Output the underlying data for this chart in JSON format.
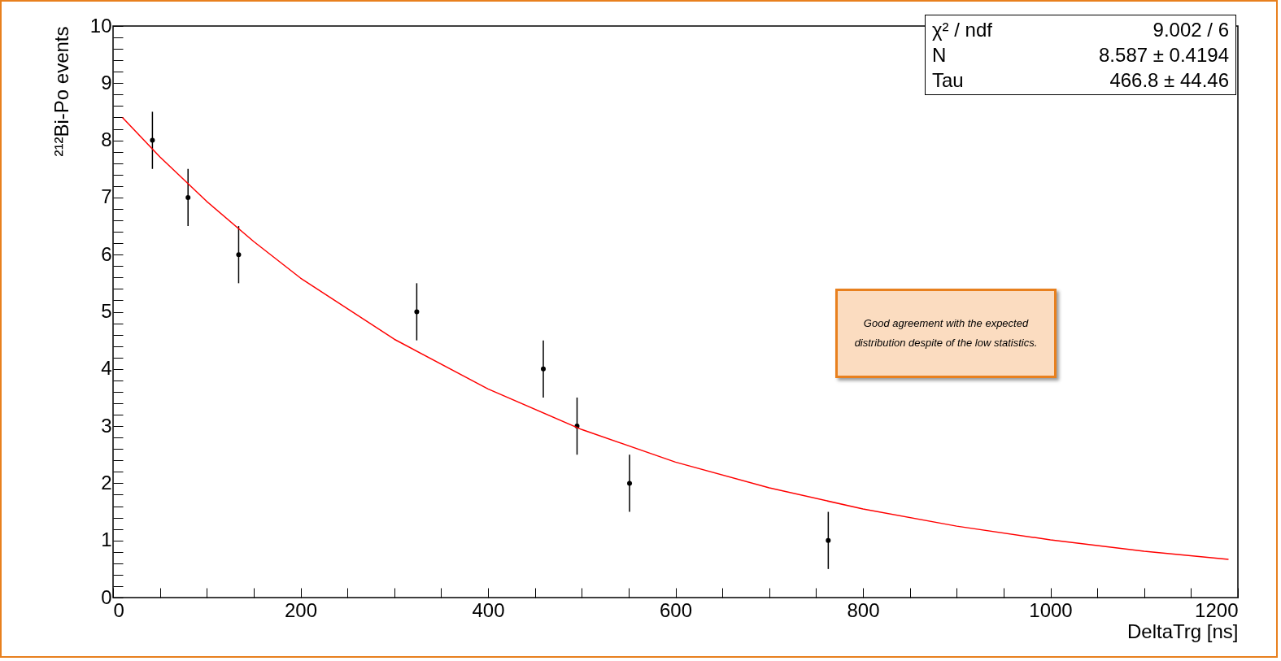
{
  "chart_data": {
    "type": "scatter",
    "xlabel": "DeltaTrg [ns]",
    "ylabel": "²¹²Bi-Po events",
    "xlim": [
      0,
      1200
    ],
    "ylim": [
      0,
      10
    ],
    "xticks": [
      0,
      {
        "value": 50,
        "label": null
      },
      {
        "value": 100,
        "label": null
      },
      {
        "value": 150,
        "label": null
      },
      200,
      {
        "value": 250,
        "label": null
      },
      {
        "value": 300,
        "label": null
      },
      {
        "value": 350,
        "label": null
      },
      400,
      {
        "value": 450,
        "label": null
      },
      {
        "value": 500,
        "label": null
      },
      {
        "value": 550,
        "label": null
      },
      600,
      {
        "value": 650,
        "label": null
      },
      {
        "value": 700,
        "label": null
      },
      {
        "value": 750,
        "label": null
      },
      800,
      {
        "value": 850,
        "label": null
      },
      {
        "value": 900,
        "label": null
      },
      {
        "value": 950,
        "label": null
      },
      1000,
      {
        "value": 1050,
        "label": null
      },
      {
        "value": 1100,
        "label": null
      },
      {
        "value": 1150,
        "label": null
      },
      1200
    ],
    "yticks": [
      0,
      {
        "value": 0.2,
        "label": null
      },
      {
        "value": 0.4,
        "label": null
      },
      {
        "value": 0.6,
        "label": null
      },
      {
        "value": 0.8,
        "label": null
      },
      1,
      {
        "value": 1.2,
        "label": null
      },
      {
        "value": 1.4,
        "label": null
      },
      {
        "value": 1.6,
        "label": null
      },
      {
        "value": 1.8,
        "label": null
      },
      2,
      {
        "value": 2.2,
        "label": null
      },
      {
        "value": 2.4,
        "label": null
      },
      {
        "value": 2.6,
        "label": null
      },
      {
        "value": 2.8,
        "label": null
      },
      3,
      {
        "value": 3.2,
        "label": null
      },
      {
        "value": 3.4,
        "label": null
      },
      {
        "value": 3.6,
        "label": null
      },
      {
        "value": 3.8,
        "label": null
      },
      4,
      {
        "value": 4.2,
        "label": null
      },
      {
        "value": 4.4,
        "label": null
      },
      {
        "value": 4.6,
        "label": null
      },
      {
        "value": 4.8,
        "label": null
      },
      5,
      {
        "value": 5.2,
        "label": null
      },
      {
        "value": 5.4,
        "label": null
      },
      {
        "value": 5.6,
        "label": null
      },
      {
        "value": 5.8,
        "label": null
      },
      6,
      {
        "value": 6.2,
        "label": null
      },
      {
        "value": 6.4,
        "label": null
      },
      {
        "value": 6.6,
        "label": null
      },
      {
        "value": 6.8,
        "label": null
      },
      7,
      {
        "value": 7.2,
        "label": null
      },
      {
        "value": 7.4,
        "label": null
      },
      {
        "value": 7.6,
        "label": null
      },
      {
        "value": 7.8,
        "label": null
      },
      8,
      {
        "value": 8.2,
        "label": null
      },
      {
        "value": 8.4,
        "label": null
      },
      {
        "value": 8.6,
        "label": null
      },
      {
        "value": 8.8,
        "label": null
      },
      9,
      {
        "value": 9.2,
        "label": null
      },
      {
        "value": 9.4,
        "label": null
      },
      {
        "value": 9.6,
        "label": null
      },
      {
        "value": 9.8,
        "label": null
      },
      10
    ],
    "series": [
      {
        "marker": "circle",
        "color": "#000000",
        "x": [
          42,
          80,
          134,
          324,
          459,
          495,
          551,
          763
        ],
        "values": [
          8,
          7,
          6,
          5,
          4,
          3,
          2,
          1
        ],
        "errors": [
          0.5,
          0.5,
          0.5,
          0.5,
          0.5,
          0.5,
          0.5,
          0.5
        ]
      },
      {
        "type": "line",
        "line_style": "solid",
        "color": "#ff0000",
        "x": [
          10,
          50,
          100,
          150,
          200,
          300,
          400,
          500,
          600,
          700,
          800,
          900,
          1000,
          1100,
          1190
        ],
        "values": [
          8.4,
          7.71,
          6.93,
          6.23,
          5.59,
          4.52,
          3.65,
          2.94,
          2.37,
          1.92,
          1.55,
          1.25,
          1.01,
          0.81,
          0.67
        ]
      }
    ],
    "annotations": [
      "χ² / ndf",
      "9.002 / 6",
      "N",
      "8.587 ± 0.4194",
      "Tau",
      "466.8 ± 44.46",
      "Good agreement with the expected distribution despite of the low statistics."
    ]
  }
}
